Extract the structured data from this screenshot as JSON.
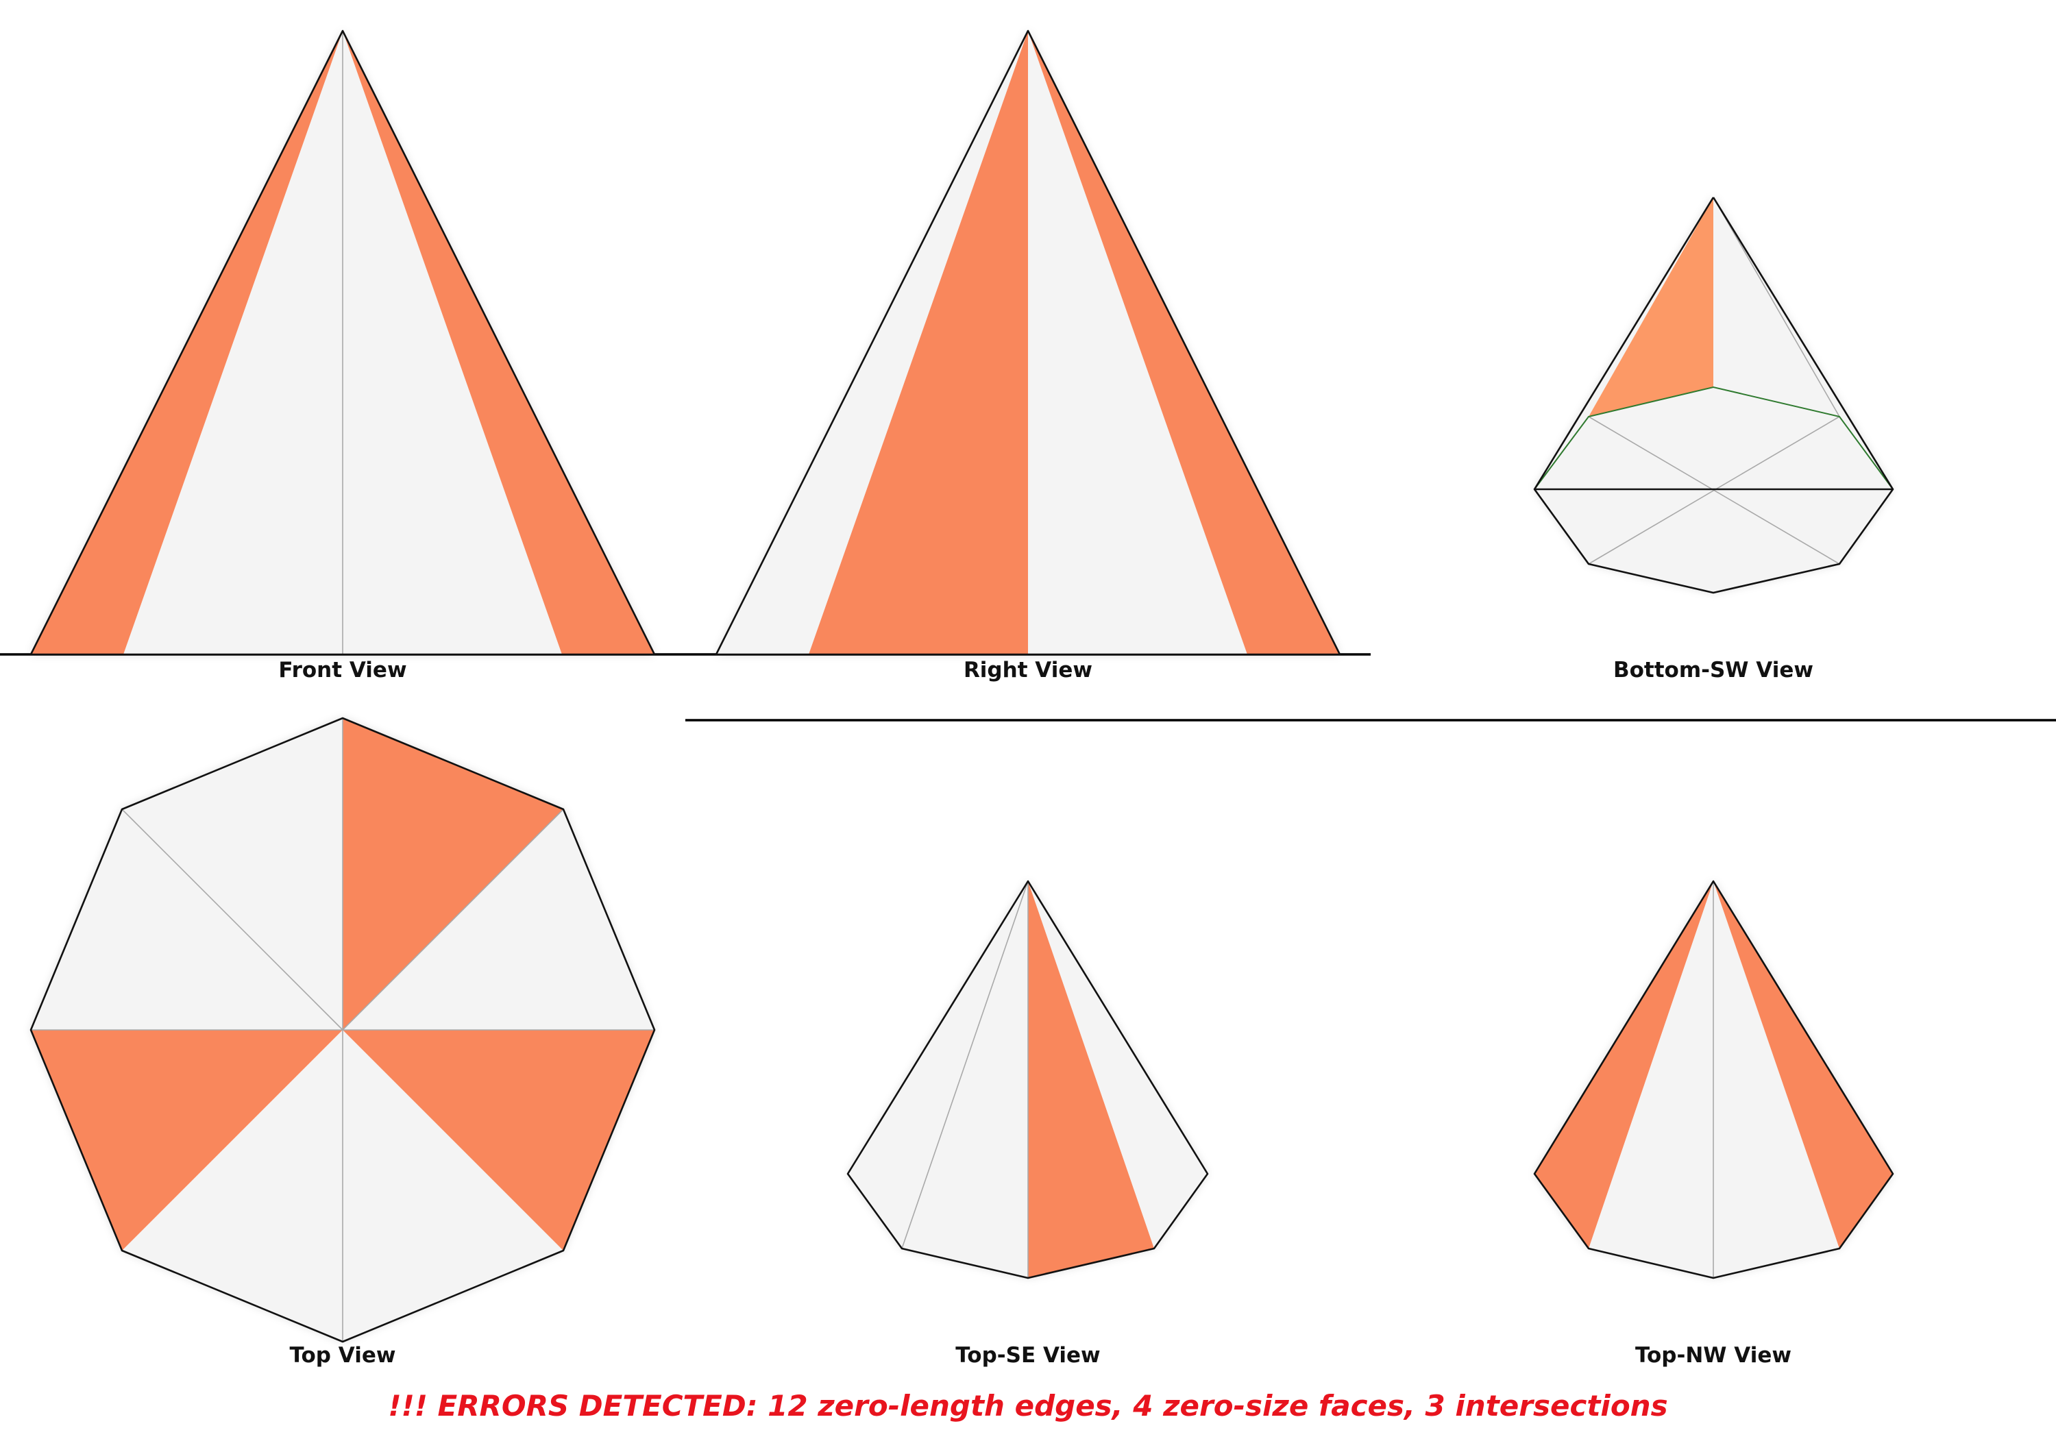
{
  "views": [
    {
      "label": "Front View"
    },
    {
      "label": "Right View"
    },
    {
      "label": "Bottom-SW View"
    },
    {
      "label": "Top View"
    },
    {
      "label": "Top-SE View"
    },
    {
      "label": "Top-NW View"
    }
  ],
  "error_message": "!!! ERRORS DETECTED: 12 zero-length edges, 4 zero-size faces, 3 intersections",
  "colors": {
    "face_orange": "#f9875b",
    "face_white": "#f4f4f4",
    "edge": "#111111",
    "error_text": "#e8141e",
    "bottom_edge_highlight": "#2f7a2f"
  }
}
